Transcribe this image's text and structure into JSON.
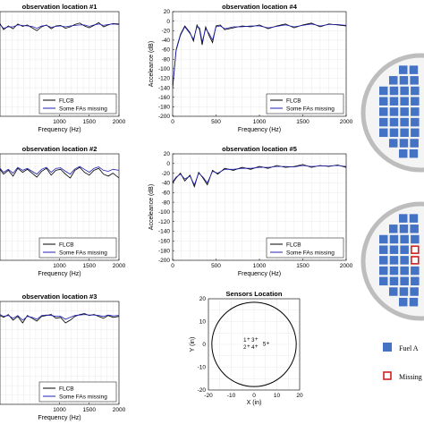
{
  "colors": {
    "flcb": "#000000",
    "missing": "#1f1fb4",
    "grid": "#e3e3e3",
    "fuel_assembly": "#4472c4",
    "missing_marker": "#d21f1f",
    "sensor": "#c000c0",
    "core_ring": "#bdbdbd",
    "core_fill": "#f4f4f4"
  },
  "chart_data": [
    {
      "type": "line",
      "title": "observation location #1",
      "xlabel": "Frequency (Hz)",
      "ylabel": "",
      "xlim": [
        0,
        2000
      ],
      "ylim": [
        -200,
        20
      ],
      "xticks": [
        "1000",
        "1500",
        "2000"
      ],
      "yticks": [],
      "legend": [
        "FLCB",
        "Some FAs missing"
      ],
      "legend_position": "bottom-right",
      "grid": true,
      "series": [
        {
          "name": "FLCB",
          "x": [
            0,
            60,
            140,
            220,
            300,
            380,
            460,
            540,
            620,
            700,
            780,
            860,
            940,
            1020,
            1100,
            1180,
            1260,
            1340,
            1420,
            1500,
            1580,
            1660,
            1740,
            1820,
            1900,
            2000
          ],
          "y": [
            -5,
            -18,
            -10,
            -16,
            -6,
            -11,
            -8,
            -14,
            -20,
            -12,
            -8,
            -16,
            -10,
            -9,
            -15,
            -12,
            -7,
            -4,
            -10,
            -14,
            -9,
            -3,
            -12,
            -8,
            -5,
            -6
          ]
        },
        {
          "name": "Some FAs missing",
          "x": [
            0,
            60,
            140,
            220,
            300,
            380,
            460,
            540,
            620,
            700,
            780,
            860,
            940,
            1020,
            1100,
            1180,
            1260,
            1340,
            1420,
            1500,
            1580,
            1660,
            1740,
            1820,
            1900,
            2000
          ],
          "y": [
            -7,
            -15,
            -12,
            -12,
            -8,
            -9,
            -10,
            -11,
            -15,
            -10,
            -9,
            -13,
            -11,
            -10,
            -12,
            -10,
            -9,
            -8,
            -8,
            -11,
            -8,
            -6,
            -9,
            -7,
            -6,
            -7
          ]
        }
      ]
    },
    {
      "type": "line",
      "title": "observation location #4",
      "xlabel": "Frequency (Hz)",
      "ylabel": "Acceleance (dB)",
      "xlim": [
        0,
        2000
      ],
      "ylim": [
        -200,
        20
      ],
      "xticks": [
        "0",
        "500",
        "1000",
        "1500",
        "2000"
      ],
      "yticks": [
        "20",
        "0",
        "-20",
        "-40",
        "-60",
        "-80",
        "-100",
        "-120",
        "-140",
        "-160",
        "-180",
        "-200"
      ],
      "legend": [
        "FLCB",
        "Some FAs missing"
      ],
      "legend_position": "bottom-right",
      "grid": true,
      "series": [
        {
          "name": "FLCB",
          "x": [
            0,
            40,
            90,
            140,
            200,
            240,
            280,
            310,
            340,
            380,
            420,
            460,
            500,
            550,
            600,
            700,
            800,
            900,
            1000,
            1100,
            1200,
            1300,
            1400,
            1500,
            1600,
            1700,
            1800,
            1900,
            2000
          ],
          "y": [
            -140,
            -60,
            -28,
            -10,
            -24,
            -42,
            -8,
            -18,
            -50,
            -12,
            -30,
            -45,
            -10,
            -8,
            -18,
            -14,
            -10,
            -12,
            -8,
            -16,
            -10,
            -6,
            -14,
            -8,
            -4,
            -12,
            -6,
            -8,
            -10
          ]
        },
        {
          "name": "Some FAs missing",
          "x": [
            0,
            40,
            90,
            140,
            200,
            240,
            280,
            310,
            340,
            380,
            420,
            460,
            500,
            550,
            600,
            700,
            800,
            900,
            1000,
            1100,
            1200,
            1300,
            1400,
            1500,
            1600,
            1700,
            1800,
            1900,
            2000
          ],
          "y": [
            -140,
            -62,
            -30,
            -12,
            -26,
            -38,
            -12,
            -14,
            -44,
            -16,
            -26,
            -40,
            -12,
            -10,
            -16,
            -12,
            -12,
            -10,
            -10,
            -14,
            -11,
            -8,
            -12,
            -9,
            -6,
            -10,
            -7,
            -7,
            -9
          ]
        }
      ]
    },
    {
      "type": "line",
      "title": "observation location #2",
      "xlabel": "Frequency (Hz)",
      "ylabel": "",
      "xlim": [
        0,
        2000
      ],
      "ylim": [
        -200,
        20
      ],
      "xticks": [
        "1000",
        "1500",
        "2000"
      ],
      "yticks": [],
      "legend": [
        "FLCB",
        "Some FAs missing"
      ],
      "legend_position": "bottom-right",
      "grid": true,
      "series": [
        {
          "name": "FLCB",
          "x": [
            0,
            60,
            140,
            220,
            300,
            380,
            460,
            540,
            620,
            700,
            780,
            860,
            940,
            1020,
            1100,
            1180,
            1260,
            1340,
            1420,
            1500,
            1580,
            1660,
            1740,
            1820,
            1900,
            2000
          ],
          "y": [
            -12,
            -22,
            -14,
            -26,
            -10,
            -18,
            -12,
            -20,
            -28,
            -16,
            -10,
            -24,
            -14,
            -12,
            -22,
            -30,
            -14,
            -8,
            -18,
            -24,
            -14,
            -10,
            -22,
            -26,
            -20,
            -30
          ]
        },
        {
          "name": "Some FAs missing",
          "x": [
            0,
            60,
            140,
            220,
            300,
            380,
            460,
            540,
            620,
            700,
            780,
            860,
            940,
            1020,
            1100,
            1180,
            1260,
            1340,
            1420,
            1500,
            1580,
            1660,
            1740,
            1820,
            1900,
            2000
          ],
          "y": [
            -10,
            -18,
            -12,
            -20,
            -8,
            -14,
            -10,
            -16,
            -22,
            -12,
            -8,
            -18,
            -10,
            -9,
            -16,
            -22,
            -11,
            -6,
            -12,
            -18,
            -10,
            -7,
            -14,
            -16,
            -12,
            -14
          ]
        }
      ]
    },
    {
      "type": "line",
      "title": "observation location #5",
      "xlabel": "Frequency (Hz)",
      "ylabel": "Acceleance (dB)",
      "xlim": [
        0,
        2000
      ],
      "ylim": [
        -200,
        20
      ],
      "xticks": [
        "0",
        "500",
        "1000",
        "1500",
        "2000"
      ],
      "yticks": [
        "20",
        "0",
        "-20",
        "-40",
        "-60",
        "-80",
        "-100",
        "-120",
        "-140",
        "-160",
        "-180",
        "-200"
      ],
      "legend": [
        "FLCB",
        "Some FAs missing"
      ],
      "legend_position": "bottom-right",
      "grid": true,
      "series": [
        {
          "name": "FLCB",
          "x": [
            0,
            40,
            90,
            140,
            200,
            250,
            300,
            350,
            400,
            460,
            520,
            600,
            700,
            800,
            900,
            1000,
            1100,
            1200,
            1300,
            1400,
            1500,
            1600,
            1700,
            1800,
            1900,
            2000
          ],
          "y": [
            -40,
            -30,
            -20,
            -36,
            -24,
            -48,
            -18,
            -30,
            -44,
            -14,
            -22,
            -10,
            -14,
            -8,
            -12,
            -6,
            -10,
            -4,
            -8,
            -6,
            -2,
            -8,
            -4,
            -6,
            -3,
            -8
          ]
        },
        {
          "name": "Some FAs missing",
          "x": [
            0,
            40,
            90,
            140,
            200,
            250,
            300,
            350,
            400,
            460,
            520,
            600,
            700,
            800,
            900,
            1000,
            1100,
            1200,
            1300,
            1400,
            1500,
            1600,
            1700,
            1800,
            1900,
            2000
          ],
          "y": [
            -38,
            -28,
            -22,
            -32,
            -26,
            -44,
            -20,
            -28,
            -40,
            -16,
            -20,
            -12,
            -12,
            -10,
            -10,
            -8,
            -8,
            -6,
            -6,
            -7,
            -4,
            -6,
            -5,
            -5,
            -4,
            -6
          ]
        }
      ]
    },
    {
      "type": "line",
      "title": "observation location #3",
      "xlabel": "Frequency (Hz)",
      "ylabel": "",
      "xlim": [
        0,
        2000
      ],
      "ylim": [
        -200,
        20
      ],
      "xticks": [
        "1000",
        "1500",
        "2000"
      ],
      "yticks": [],
      "legend": [
        "FLCB",
        "Some FAs missing"
      ],
      "legend_position": "bottom-right",
      "grid": true,
      "series": [
        {
          "name": "FLCB",
          "x": [
            0,
            60,
            140,
            220,
            300,
            380,
            460,
            540,
            620,
            700,
            780,
            860,
            940,
            1020,
            1100,
            1180,
            1260,
            1340,
            1420,
            1500,
            1580,
            1660,
            1740,
            1820,
            1900,
            2000
          ],
          "y": [
            -10,
            -14,
            -8,
            -20,
            -12,
            -26,
            -10,
            -16,
            -22,
            -12,
            -10,
            -8,
            -16,
            -14,
            -26,
            -20,
            -12,
            -8,
            -6,
            -10,
            -8,
            -12,
            -16,
            -10,
            -14,
            -12
          ]
        },
        {
          "name": "Some FAs missing",
          "x": [
            0,
            60,
            140,
            220,
            300,
            380,
            460,
            540,
            620,
            700,
            780,
            860,
            940,
            1020,
            1100,
            1180,
            1260,
            1340,
            1420,
            1500,
            1580,
            1660,
            1740,
            1820,
            1900,
            2000
          ],
          "y": [
            -8,
            -12,
            -10,
            -16,
            -10,
            -20,
            -12,
            -14,
            -18,
            -10,
            -9,
            -10,
            -12,
            -12,
            -18,
            -14,
            -10,
            -9,
            -8,
            -9,
            -9,
            -10,
            -12,
            -9,
            -11,
            -10
          ]
        }
      ]
    },
    {
      "type": "scatter",
      "title": "Sensors Location",
      "xlabel": "X (in)",
      "ylabel": "Y (in)",
      "xlim": [
        -20,
        20
      ],
      "ylim": [
        -20,
        20
      ],
      "xticks": [
        "-20",
        "-10",
        "0",
        "10",
        "20"
      ],
      "yticks": [
        "20",
        "10",
        "0",
        "-10",
        "-20"
      ],
      "grid": true,
      "boundary_radius": 18.5,
      "points": [
        {
          "label": "1",
          "x": -3,
          "y": 2
        },
        {
          "label": "3",
          "x": 0.5,
          "y": 2
        },
        {
          "label": "2",
          "x": -3,
          "y": -1.2
        },
        {
          "label": "4",
          "x": 0.5,
          "y": -1.2
        },
        {
          "label": "5",
          "x": 5.5,
          "y": 0.2
        }
      ]
    }
  ],
  "core_maps": {
    "legend": [
      "Fuel A",
      "Missing"
    ]
  }
}
